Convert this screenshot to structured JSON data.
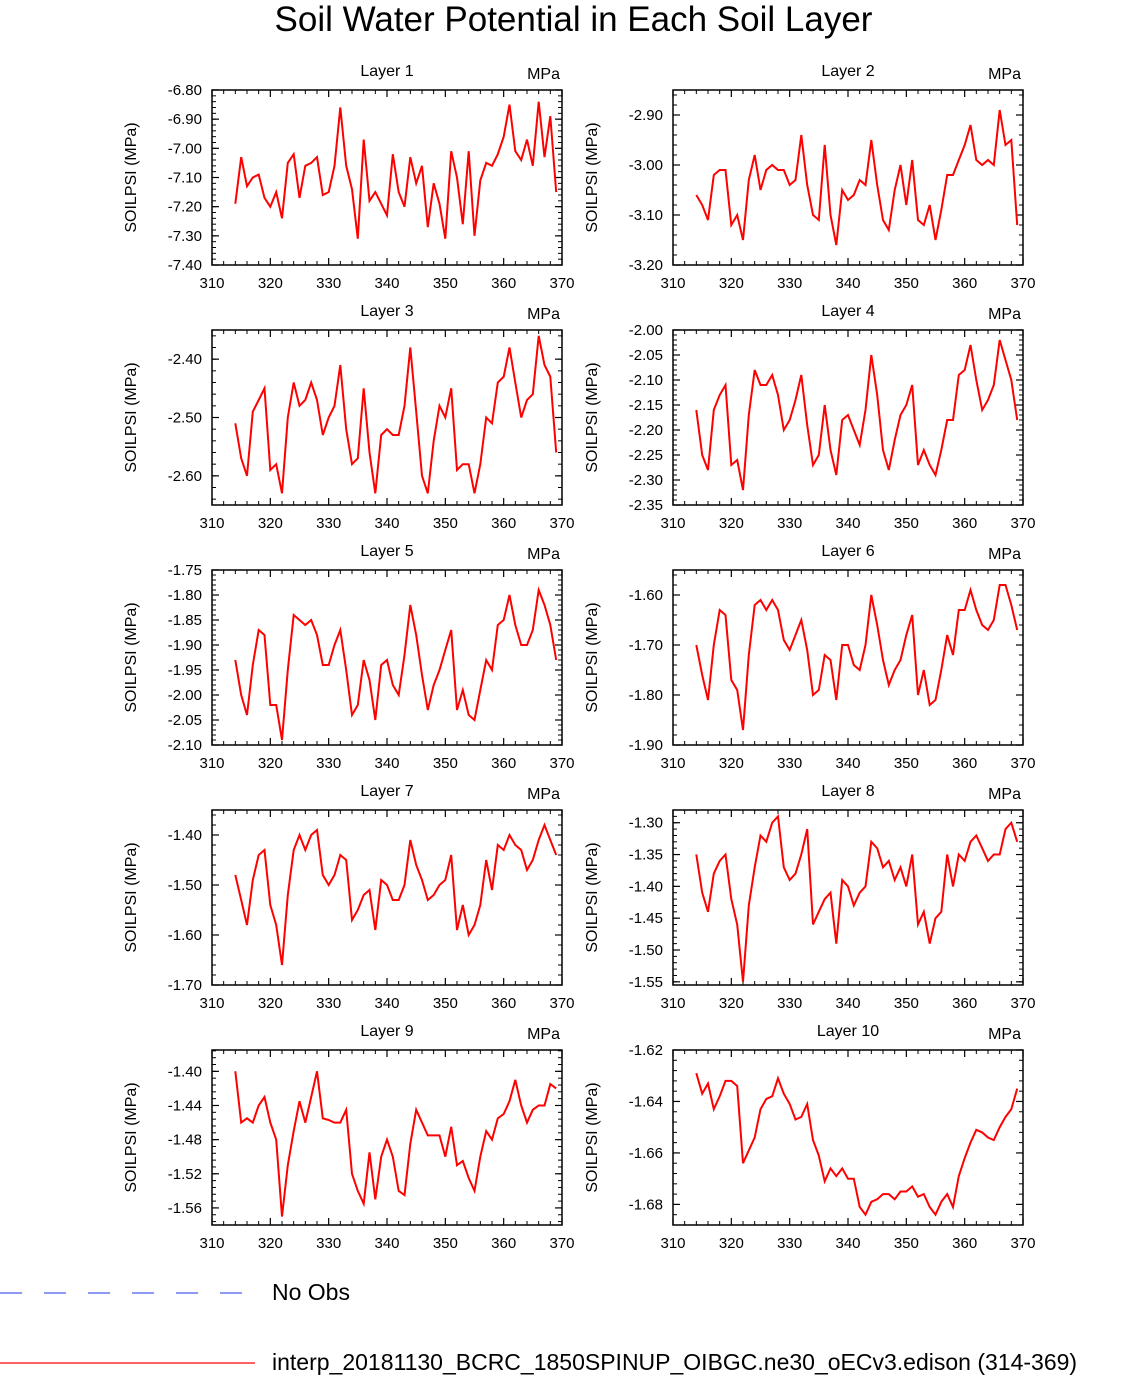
{
  "title": "Soil Water Potential in Each Soil Layer",
  "colors": {
    "model_line": "#ff0000",
    "obs_line": "#4a5cf0",
    "axis": "#000000"
  },
  "legend": [
    {
      "label": "No Obs",
      "style": "dashed",
      "color": "#4a5cf0"
    },
    {
      "label": "interp_20181130_BCRC_1850SPINUP_OIBGC.ne30_oECv3.edison (314-369)",
      "style": "solid",
      "color": "#ff0000"
    }
  ],
  "chart_data": [
    {
      "type": "line",
      "title": "Layer 1",
      "units": "MPa",
      "ylabel": "SOILPSI  (MPa)",
      "xlim": [
        310,
        370
      ],
      "xticks": [
        310,
        320,
        330,
        340,
        350,
        360,
        370
      ],
      "xtick_labels": [
        "310",
        "320",
        "330",
        "340",
        "350",
        "360",
        "370"
      ],
      "ylim": [
        -7.4,
        -6.8
      ],
      "yticks": [
        -7.4,
        -7.3,
        -7.2,
        -7.1,
        -7.0,
        -6.9,
        -6.8
      ],
      "ytick_labels": [
        "-7.40",
        "-7.30",
        "-7.20",
        "-7.10",
        "-7.00",
        "-6.90",
        "-6.80"
      ],
      "yminor": 0.02,
      "series": [
        {
          "name": "model",
          "x_start": 314,
          "values": [
            -7.19,
            -7.03,
            -7.13,
            -7.1,
            -7.09,
            -7.17,
            -7.2,
            -7.15,
            -7.24,
            -7.05,
            -7.02,
            -7.17,
            -7.06,
            -7.05,
            -7.03,
            -7.16,
            -7.15,
            -7.06,
            -6.86,
            -7.06,
            -7.14,
            -7.31,
            -6.97,
            -7.18,
            -7.15,
            -7.19,
            -7.23,
            -7.02,
            -7.15,
            -7.2,
            -7.03,
            -7.12,
            -7.06,
            -7.27,
            -7.12,
            -7.19,
            -7.31,
            -7.01,
            -7.1,
            -7.26,
            -7.01,
            -7.3,
            -7.11,
            -7.05,
            -7.06,
            -7.02,
            -6.96,
            -6.85,
            -7.01,
            -7.04,
            -6.97,
            -7.06,
            -6.84,
            -7.03,
            -6.89,
            -7.15
          ]
        }
      ]
    },
    {
      "type": "line",
      "title": "Layer 2",
      "units": "MPa",
      "ylabel": "SOILPSI  (MPa)",
      "xlim": [
        310,
        370
      ],
      "xticks": [
        310,
        320,
        330,
        340,
        350,
        360,
        370
      ],
      "xtick_labels": [
        "310",
        "320",
        "330",
        "340",
        "350",
        "360",
        "370"
      ],
      "ylim": [
        -3.2,
        -2.85
      ],
      "yticks": [
        -3.2,
        -3.1,
        -3.0,
        -2.9
      ],
      "ytick_labels": [
        "-3.20",
        "-3.10",
        "-3.00",
        "-2.90"
      ],
      "yminor": 0.02,
      "series": [
        {
          "name": "model",
          "x_start": 314,
          "values": [
            -3.06,
            -3.08,
            -3.11,
            -3.02,
            -3.01,
            -3.01,
            -3.12,
            -3.1,
            -3.15,
            -3.03,
            -2.98,
            -3.05,
            -3.01,
            -3.0,
            -3.01,
            -3.01,
            -3.04,
            -3.03,
            -2.94,
            -3.04,
            -3.1,
            -3.11,
            -2.96,
            -3.1,
            -3.16,
            -3.05,
            -3.07,
            -3.06,
            -3.03,
            -3.04,
            -2.95,
            -3.04,
            -3.11,
            -3.13,
            -3.05,
            -3.0,
            -3.08,
            -2.99,
            -3.11,
            -3.12,
            -3.08,
            -3.15,
            -3.09,
            -3.02,
            -3.02,
            -2.99,
            -2.96,
            -2.92,
            -2.99,
            -3.0,
            -2.99,
            -3.0,
            -2.89,
            -2.96,
            -2.95,
            -3.12
          ]
        }
      ]
    },
    {
      "type": "line",
      "title": "Layer 3",
      "units": "MPa",
      "ylabel": "SOILPSI  (MPa)",
      "xlim": [
        310,
        370
      ],
      "xticks": [
        310,
        320,
        330,
        340,
        350,
        360,
        370
      ],
      "xtick_labels": [
        "310",
        "320",
        "330",
        "340",
        "350",
        "360",
        "370"
      ],
      "ylim": [
        -2.65,
        -2.35
      ],
      "yticks": [
        -2.6,
        -2.5,
        -2.4
      ],
      "ytick_labels": [
        "-2.60",
        "-2.50",
        "-2.40"
      ],
      "yminor": 0.02,
      "series": [
        {
          "name": "model",
          "x_start": 314,
          "values": [
            -2.51,
            -2.57,
            -2.6,
            -2.49,
            -2.47,
            -2.45,
            -2.59,
            -2.58,
            -2.63,
            -2.5,
            -2.44,
            -2.48,
            -2.47,
            -2.44,
            -2.47,
            -2.53,
            -2.5,
            -2.48,
            -2.41,
            -2.52,
            -2.58,
            -2.57,
            -2.45,
            -2.56,
            -2.63,
            -2.53,
            -2.52,
            -2.53,
            -2.53,
            -2.48,
            -2.38,
            -2.49,
            -2.6,
            -2.63,
            -2.54,
            -2.48,
            -2.5,
            -2.45,
            -2.59,
            -2.58,
            -2.58,
            -2.63,
            -2.58,
            -2.5,
            -2.51,
            -2.44,
            -2.43,
            -2.38,
            -2.44,
            -2.5,
            -2.47,
            -2.46,
            -2.36,
            -2.41,
            -2.43,
            -2.56
          ]
        }
      ]
    },
    {
      "type": "line",
      "title": "Layer 4",
      "units": "MPa",
      "ylabel": "SOILPSI  (MPa)",
      "xlim": [
        310,
        370
      ],
      "xticks": [
        310,
        320,
        330,
        340,
        350,
        360,
        370
      ],
      "xtick_labels": [
        "310",
        "320",
        "330",
        "340",
        "350",
        "360",
        "370"
      ],
      "ylim": [
        -2.35,
        -2.0
      ],
      "yticks": [
        -2.35,
        -2.3,
        -2.25,
        -2.2,
        -2.15,
        -2.1,
        -2.05,
        -2.0
      ],
      "ytick_labels": [
        "-2.35",
        "-2.30",
        "-2.25",
        "-2.20",
        "-2.15",
        "-2.10",
        "-2.05",
        "-2.00"
      ],
      "yminor": 0.01,
      "series": [
        {
          "name": "model",
          "x_start": 314,
          "values": [
            -2.16,
            -2.25,
            -2.28,
            -2.16,
            -2.13,
            -2.11,
            -2.27,
            -2.26,
            -2.32,
            -2.17,
            -2.08,
            -2.11,
            -2.11,
            -2.09,
            -2.13,
            -2.2,
            -2.18,
            -2.14,
            -2.09,
            -2.19,
            -2.27,
            -2.25,
            -2.15,
            -2.24,
            -2.29,
            -2.18,
            -2.17,
            -2.2,
            -2.23,
            -2.16,
            -2.05,
            -2.13,
            -2.24,
            -2.28,
            -2.22,
            -2.17,
            -2.15,
            -2.11,
            -2.27,
            -2.24,
            -2.27,
            -2.29,
            -2.24,
            -2.18,
            -2.18,
            -2.09,
            -2.08,
            -2.03,
            -2.1,
            -2.16,
            -2.14,
            -2.11,
            -2.02,
            -2.06,
            -2.1,
            -2.18
          ]
        }
      ]
    },
    {
      "type": "line",
      "title": "Layer 5",
      "units": "MPa",
      "ylabel": "SOILPSI  (MPa)",
      "xlim": [
        310,
        370
      ],
      "xticks": [
        310,
        320,
        330,
        340,
        350,
        360,
        370
      ],
      "xtick_labels": [
        "310",
        "320",
        "330",
        "340",
        "350",
        "360",
        "370"
      ],
      "ylim": [
        -2.1,
        -1.75
      ],
      "yticks": [
        -2.1,
        -2.05,
        -2.0,
        -1.95,
        -1.9,
        -1.85,
        -1.8,
        -1.75
      ],
      "ytick_labels": [
        "-2.10",
        "-2.05",
        "-2.00",
        "-1.95",
        "-1.90",
        "-1.85",
        "-1.80",
        "-1.75"
      ],
      "yminor": 0.01,
      "series": [
        {
          "name": "model",
          "x_start": 314,
          "values": [
            -1.93,
            -2.0,
            -2.04,
            -1.94,
            -1.87,
            -1.88,
            -2.02,
            -2.02,
            -2.09,
            -1.95,
            -1.84,
            -1.85,
            -1.86,
            -1.85,
            -1.88,
            -1.94,
            -1.94,
            -1.9,
            -1.87,
            -1.95,
            -2.04,
            -2.02,
            -1.93,
            -1.97,
            -2.05,
            -1.94,
            -1.93,
            -1.98,
            -2.0,
            -1.92,
            -1.82,
            -1.88,
            -1.96,
            -2.03,
            -1.98,
            -1.95,
            -1.91,
            -1.87,
            -2.03,
            -1.99,
            -2.04,
            -2.05,
            -1.99,
            -1.93,
            -1.95,
            -1.86,
            -1.85,
            -1.8,
            -1.86,
            -1.9,
            -1.9,
            -1.87,
            -1.79,
            -1.82,
            -1.86,
            -1.93
          ]
        }
      ]
    },
    {
      "type": "line",
      "title": "Layer 6",
      "units": "MPa",
      "ylabel": "SOILPSI  (MPa)",
      "xlim": [
        310,
        370
      ],
      "xticks": [
        310,
        320,
        330,
        340,
        350,
        360,
        370
      ],
      "xtick_labels": [
        "310",
        "320",
        "330",
        "340",
        "350",
        "360",
        "370"
      ],
      "ylim": [
        -1.9,
        -1.55
      ],
      "yticks": [
        -1.9,
        -1.8,
        -1.7,
        -1.6
      ],
      "ytick_labels": [
        "-1.90",
        "-1.80",
        "-1.70",
        "-1.60"
      ],
      "yminor": 0.02,
      "series": [
        {
          "name": "model",
          "x_start": 314,
          "values": [
            -1.7,
            -1.76,
            -1.81,
            -1.7,
            -1.63,
            -1.64,
            -1.77,
            -1.79,
            -1.87,
            -1.72,
            -1.62,
            -1.61,
            -1.63,
            -1.61,
            -1.63,
            -1.69,
            -1.71,
            -1.68,
            -1.65,
            -1.71,
            -1.8,
            -1.79,
            -1.72,
            -1.73,
            -1.81,
            -1.7,
            -1.7,
            -1.74,
            -1.75,
            -1.7,
            -1.6,
            -1.66,
            -1.73,
            -1.78,
            -1.75,
            -1.73,
            -1.68,
            -1.64,
            -1.8,
            -1.75,
            -1.82,
            -1.81,
            -1.75,
            -1.68,
            -1.72,
            -1.63,
            -1.63,
            -1.59,
            -1.63,
            -1.66,
            -1.67,
            -1.65,
            -1.58,
            -1.58,
            -1.62,
            -1.67
          ]
        }
      ]
    },
    {
      "type": "line",
      "title": "Layer 7",
      "units": "MPa",
      "ylabel": "SOILPSI  (MPa)",
      "xlim": [
        310,
        370
      ],
      "xticks": [
        310,
        320,
        330,
        340,
        350,
        360,
        370
      ],
      "xtick_labels": [
        "310",
        "320",
        "330",
        "340",
        "350",
        "360",
        "370"
      ],
      "ylim": [
        -1.7,
        -1.35
      ],
      "yticks": [
        -1.7,
        -1.6,
        -1.5,
        -1.4
      ],
      "ytick_labels": [
        "-1.70",
        "-1.60",
        "-1.50",
        "-1.40"
      ],
      "yminor": 0.02,
      "series": [
        {
          "name": "model",
          "x_start": 314,
          "values": [
            -1.48,
            -1.53,
            -1.58,
            -1.49,
            -1.44,
            -1.43,
            -1.54,
            -1.58,
            -1.66,
            -1.52,
            -1.43,
            -1.4,
            -1.43,
            -1.4,
            -1.39,
            -1.48,
            -1.5,
            -1.48,
            -1.44,
            -1.45,
            -1.57,
            -1.55,
            -1.52,
            -1.51,
            -1.59,
            -1.49,
            -1.5,
            -1.53,
            -1.53,
            -1.5,
            -1.41,
            -1.46,
            -1.49,
            -1.53,
            -1.52,
            -1.5,
            -1.49,
            -1.44,
            -1.59,
            -1.54,
            -1.6,
            -1.58,
            -1.54,
            -1.45,
            -1.51,
            -1.42,
            -1.43,
            -1.4,
            -1.42,
            -1.43,
            -1.47,
            -1.45,
            -1.41,
            -1.38,
            -1.41,
            -1.44
          ]
        }
      ]
    },
    {
      "type": "line",
      "title": "Layer 8",
      "units": "MPa",
      "ylabel": "SOILPSI  (MPa)",
      "xlim": [
        310,
        370
      ],
      "xticks": [
        310,
        320,
        330,
        340,
        350,
        360,
        370
      ],
      "xtick_labels": [
        "310",
        "320",
        "330",
        "340",
        "350",
        "360",
        "370"
      ],
      "ylim": [
        -1.555,
        -1.28
      ],
      "yticks": [
        -1.55,
        -1.5,
        -1.45,
        -1.4,
        -1.35,
        -1.3
      ],
      "ytick_labels": [
        "-1.55",
        "-1.50",
        "-1.45",
        "-1.40",
        "-1.35",
        "-1.30"
      ],
      "yminor": 0.01,
      "series": [
        {
          "name": "model",
          "x_start": 314,
          "values": [
            -1.35,
            -1.41,
            -1.44,
            -1.38,
            -1.36,
            -1.35,
            -1.42,
            -1.46,
            -1.55,
            -1.43,
            -1.37,
            -1.32,
            -1.33,
            -1.3,
            -1.29,
            -1.37,
            -1.39,
            -1.38,
            -1.35,
            -1.31,
            -1.46,
            -1.44,
            -1.42,
            -1.41,
            -1.49,
            -1.39,
            -1.4,
            -1.43,
            -1.41,
            -1.4,
            -1.33,
            -1.34,
            -1.37,
            -1.36,
            -1.39,
            -1.37,
            -1.4,
            -1.35,
            -1.46,
            -1.44,
            -1.49,
            -1.45,
            -1.44,
            -1.35,
            -1.4,
            -1.35,
            -1.36,
            -1.33,
            -1.32,
            -1.34,
            -1.36,
            -1.35,
            -1.35,
            -1.31,
            -1.3,
            -1.33
          ]
        }
      ]
    },
    {
      "type": "line",
      "title": "Layer 9",
      "units": "MPa",
      "ylabel": "SOILPSI  (MPa)",
      "xlim": [
        310,
        370
      ],
      "xticks": [
        310,
        320,
        330,
        340,
        350,
        360,
        370
      ],
      "xtick_labels": [
        "310",
        "320",
        "330",
        "340",
        "350",
        "360",
        "370"
      ],
      "ylim": [
        -1.58,
        -1.375
      ],
      "yticks": [
        -1.56,
        -1.52,
        -1.48,
        -1.44,
        -1.4
      ],
      "ytick_labels": [
        "-1.56",
        "-1.52",
        "-1.48",
        "-1.44",
        "-1.40"
      ],
      "yminor": 0.008,
      "series": [
        {
          "name": "model",
          "x_start": 314,
          "values": [
            -1.4,
            -1.46,
            -1.455,
            -1.46,
            -1.44,
            -1.43,
            -1.46,
            -1.48,
            -1.57,
            -1.51,
            -1.47,
            -1.435,
            -1.46,
            -1.43,
            -1.4,
            -1.455,
            -1.457,
            -1.46,
            -1.46,
            -1.445,
            -1.52,
            -1.54,
            -1.555,
            -1.495,
            -1.55,
            -1.5,
            -1.48,
            -1.5,
            -1.54,
            -1.545,
            -1.485,
            -1.445,
            -1.46,
            -1.475,
            -1.475,
            -1.475,
            -1.5,
            -1.465,
            -1.51,
            -1.505,
            -1.525,
            -1.54,
            -1.5,
            -1.47,
            -1.48,
            -1.455,
            -1.45,
            -1.435,
            -1.41,
            -1.44,
            -1.46,
            -1.445,
            -1.44,
            -1.44,
            -1.415,
            -1.42
          ]
        }
      ]
    },
    {
      "type": "line",
      "title": "Layer 10",
      "units": "MPa",
      "ylabel": "SOILPSI  (MPa)",
      "xlim": [
        310,
        370
      ],
      "xticks": [
        310,
        320,
        330,
        340,
        350,
        360,
        370
      ],
      "xtick_labels": [
        "310",
        "320",
        "330",
        "340",
        "350",
        "360",
        "370"
      ],
      "ylim": [
        -1.688,
        -1.62
      ],
      "yticks": [
        -1.68,
        -1.66,
        -1.64,
        -1.62
      ],
      "ytick_labels": [
        "-1.68",
        "-1.66",
        "-1.64",
        "-1.62"
      ],
      "yminor": 0.004,
      "series": [
        {
          "name": "model",
          "x_start": 314,
          "values": [
            -1.629,
            -1.637,
            -1.633,
            -1.643,
            -1.638,
            -1.632,
            -1.632,
            -1.634,
            -1.664,
            -1.659,
            -1.654,
            -1.643,
            -1.639,
            -1.638,
            -1.631,
            -1.637,
            -1.641,
            -1.647,
            -1.646,
            -1.641,
            -1.655,
            -1.661,
            -1.671,
            -1.666,
            -1.669,
            -1.666,
            -1.67,
            -1.67,
            -1.681,
            -1.684,
            -1.679,
            -1.678,
            -1.676,
            -1.676,
            -1.678,
            -1.675,
            -1.675,
            -1.673,
            -1.677,
            -1.676,
            -1.681,
            -1.684,
            -1.679,
            -1.676,
            -1.681,
            -1.669,
            -1.662,
            -1.656,
            -1.651,
            -1.652,
            -1.654,
            -1.655,
            -1.65,
            -1.646,
            -1.643,
            -1.635
          ]
        }
      ]
    }
  ]
}
